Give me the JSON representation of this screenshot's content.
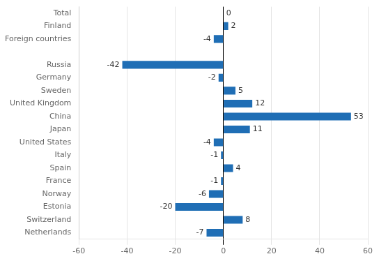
{
  "chart_data": {
    "type": "bar",
    "orientation": "horizontal",
    "categories": [
      "Netherlands",
      "Switzerland",
      "Estonia",
      "Norway",
      "France",
      "Spain",
      "Italy",
      "United States",
      "Japan",
      "China",
      "United Kingdom",
      "Sweden",
      "Germany",
      "Russia",
      null,
      "Foreign countries",
      "Finland",
      "Total"
    ],
    "values": [
      -7,
      8,
      -20,
      -6,
      -1,
      4,
      -1,
      -4,
      11,
      53,
      12,
      5,
      -2,
      -42,
      null,
      -4,
      2,
      0
    ],
    "color": "#1f6eb5",
    "xlim": [
      -60,
      60
    ],
    "xticks": [
      -60,
      -40,
      -20,
      0,
      20,
      40,
      60
    ],
    "grid": true,
    "data_labels": true
  }
}
